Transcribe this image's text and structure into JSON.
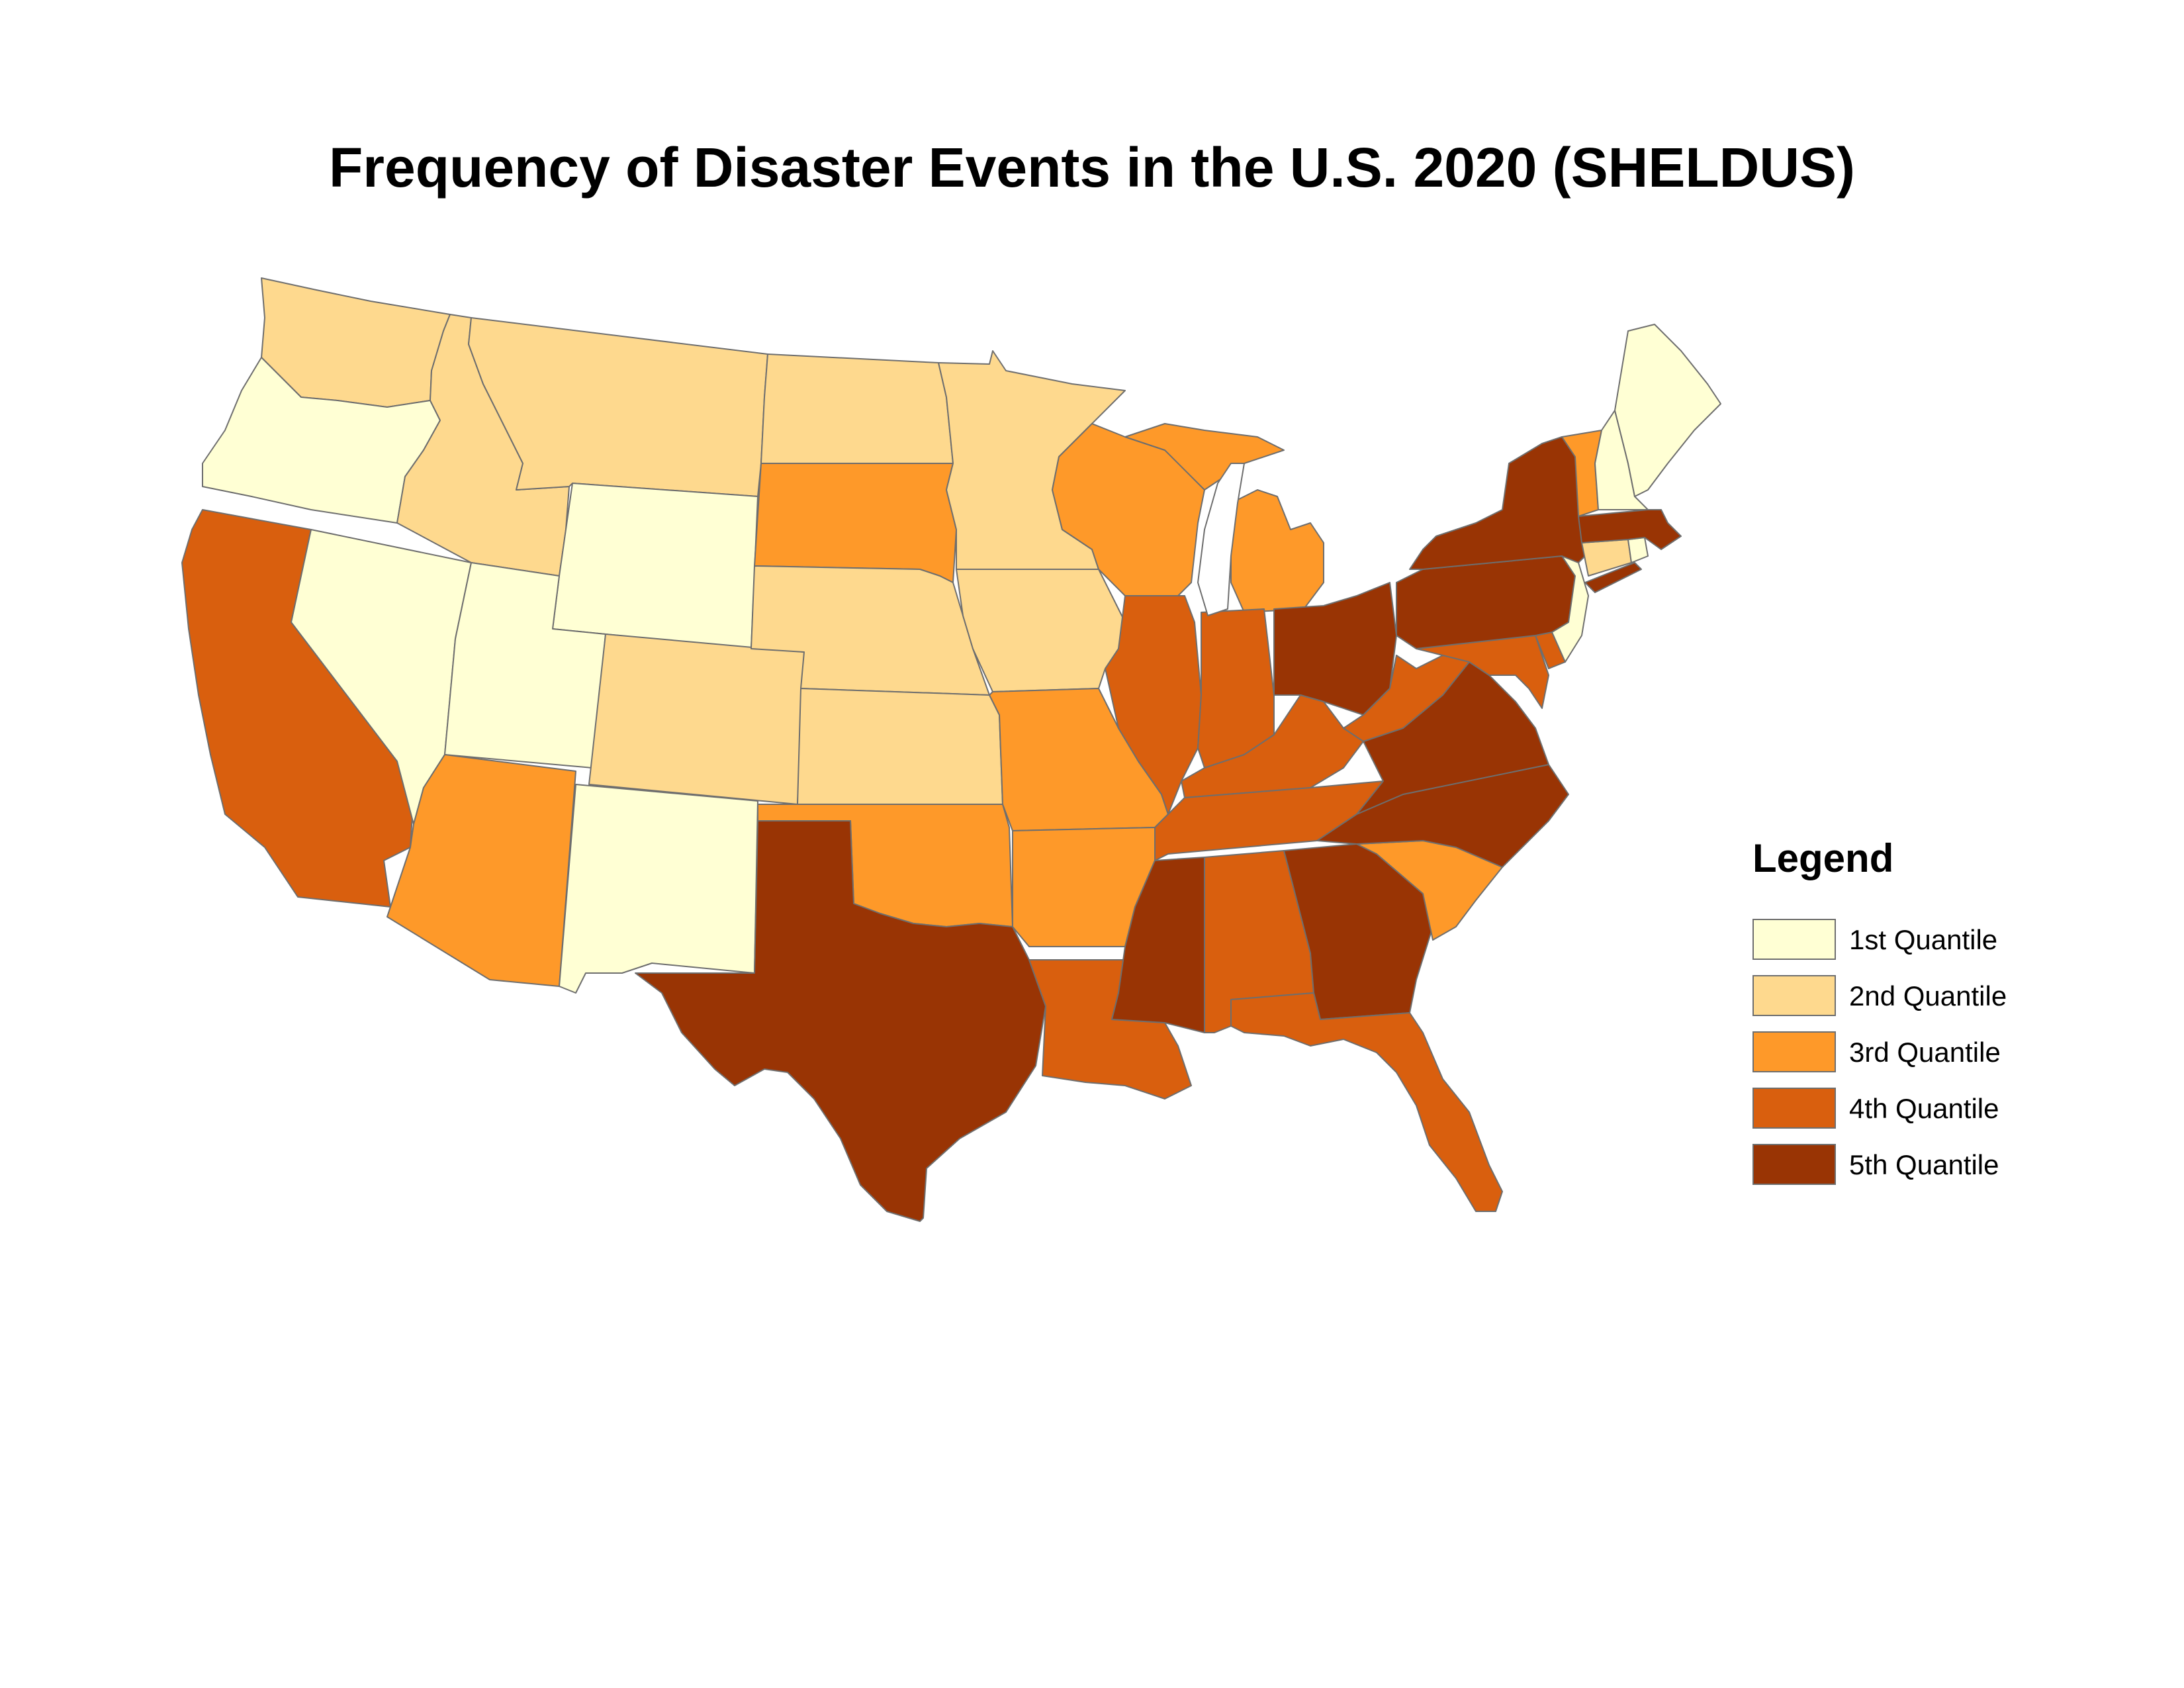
{
  "title": "Frequency of Disaster Events in the U.S. 2020 (SHELDUS)",
  "legend": {
    "title": "Legend",
    "classes": [
      {
        "label": "1st Quantile",
        "color": "#ffffd4"
      },
      {
        "label": "2nd Quantile",
        "color": "#fed98e"
      },
      {
        "label": "3rd Quantile",
        "color": "#fe9929"
      },
      {
        "label": "4th Quantile",
        "color": "#d95f0e"
      },
      {
        "label": "5th Quantile",
        "color": "#993404"
      }
    ]
  },
  "states": {
    "washington": 2,
    "oregon": 1,
    "california": 4,
    "nevada": 1,
    "idaho": 2,
    "montana": 2,
    "wyoming": 1,
    "utah": 1,
    "arizona": 3,
    "colorado": 2,
    "new-mexico": 1,
    "north-dakota": 2,
    "south-dakota": 3,
    "nebraska": 2,
    "kansas": 2,
    "oklahoma": 3,
    "texas": 5,
    "minnesota": 2,
    "iowa": 2,
    "missouri": 3,
    "arkansas": 3,
    "louisiana": 4,
    "wisconsin": 3,
    "illinois": 4,
    "michigan": 3,
    "indiana": 4,
    "ohio": 5,
    "kentucky": 4,
    "tennessee": 4,
    "mississippi": 5,
    "alabama": 4,
    "georgia": 5,
    "florida": 4,
    "south-carolina": 3,
    "north-carolina": 5,
    "virginia": 5,
    "west-virginia": 4,
    "maryland": 4,
    "delaware": 4,
    "pennsylvania": 5,
    "new-jersey": 1,
    "new-york": 5,
    "connecticut": 2,
    "rhode-island": 1,
    "massachusetts": 5,
    "vermont": 3,
    "new-hampshire": 1,
    "maine": 1
  }
}
